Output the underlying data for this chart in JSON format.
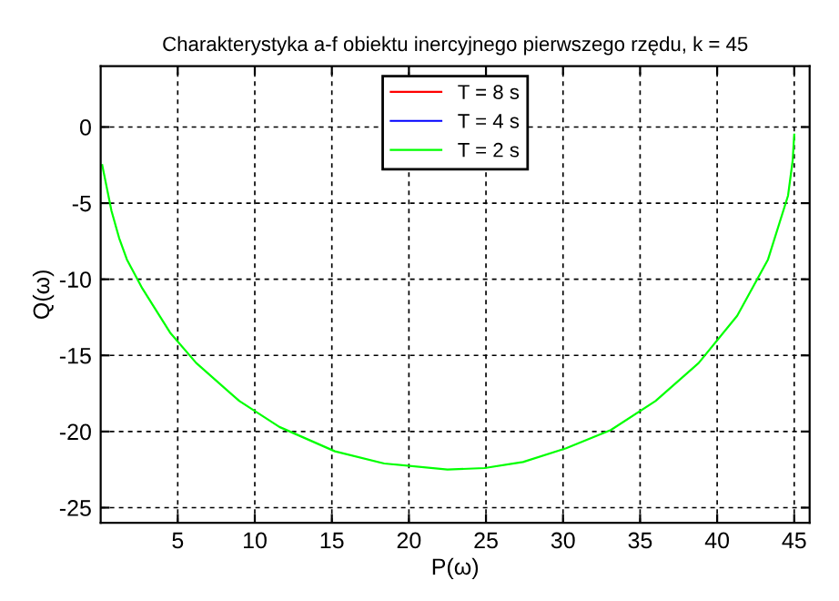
{
  "chart_data": {
    "type": "line",
    "title": "Charakterystyka a-f obiektu inercyjnego pierwszego rzędu, k = 45",
    "xlabel": "P(ω)",
    "ylabel": "Q(ω)",
    "x": [
      45.0,
      44.9,
      44.6,
      43.3,
      41.3,
      38.8,
      36.0,
      33.1,
      30.2,
      27.4,
      24.9,
      22.5,
      18.4,
      15.2,
      11.6,
      9.0,
      6.2,
      4.5,
      2.7,
      1.7,
      1.2,
      0.7,
      0.5,
      0.2,
      0.1
    ],
    "series": [
      {
        "name": "T = 8 s",
        "color": "#ff0000",
        "values": [
          null,
          null,
          null,
          null,
          null,
          null,
          null,
          null,
          null,
          null,
          null,
          null,
          null,
          null,
          null,
          null,
          null,
          null,
          null,
          null,
          null,
          null,
          null,
          null,
          null
        ]
      },
      {
        "name": "T = 4 s",
        "color": "#0000ff",
        "values": [
          null,
          null,
          null,
          null,
          null,
          null,
          null,
          null,
          null,
          null,
          null,
          null,
          null,
          null,
          null,
          null,
          null,
          null,
          null,
          null,
          null,
          null,
          null,
          null,
          null
        ]
      },
      {
        "name": "T = 2 s",
        "color": "#00ff00",
        "values": [
          -0.5,
          -2.2,
          -4.5,
          -8.7,
          -12.4,
          -15.5,
          -18.0,
          -19.9,
          -21.1,
          -22.0,
          -22.4,
          -22.5,
          -22.1,
          -21.3,
          -19.7,
          -18.0,
          -15.5,
          -13.5,
          -10.6,
          -8.7,
          -7.3,
          -5.5,
          -4.5,
          -3.0,
          -2.5
        ]
      }
    ],
    "xlim": [
      0,
      46
    ],
    "ylim": [
      -26,
      4
    ],
    "xticks": [
      5,
      10,
      15,
      20,
      25,
      30,
      35,
      40,
      45
    ],
    "yticks": [
      -25,
      -20,
      -15,
      -10,
      -5,
      0
    ],
    "grid": true,
    "legend": "top",
    "marker": "none",
    "line_style": "solid"
  }
}
